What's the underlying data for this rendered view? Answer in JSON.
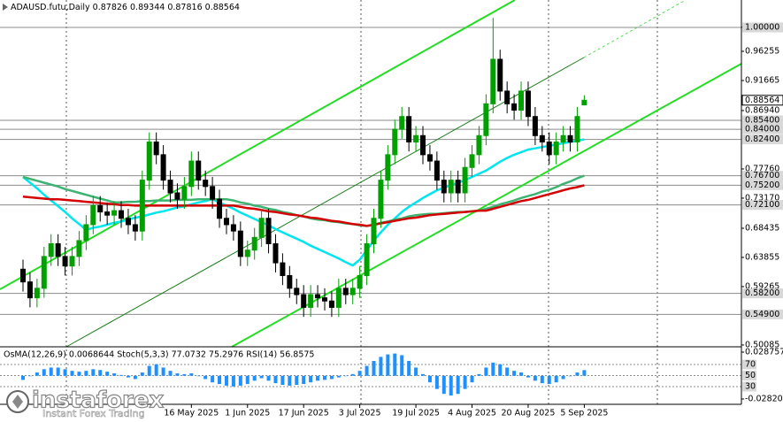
{
  "chart_data": [
    {
      "type": "candlestick",
      "title": "ADAUSD.futu,Daily",
      "categories": [
        null,
        null,
        null,
        null,
        null,
        null,
        null,
        null,
        null,
        null,
        null,
        null,
        null,
        null,
        null,
        null,
        null,
        null,
        null,
        null,
        null,
        null,
        null,
        null,
        "16 May 2025",
        null,
        null,
        null,
        null,
        null,
        null,
        null,
        "1 Jun 2025",
        null,
        null,
        null,
        null,
        null,
        null,
        null,
        "17 Jun 2025",
        null,
        null,
        null,
        null,
        null,
        null,
        null,
        "3 Jul 2025",
        null,
        null,
        null,
        null,
        null,
        null,
        null,
        "19 Jul 2025",
        null,
        null,
        null,
        null,
        null,
        null,
        null,
        "4 Aug 2025",
        null,
        null,
        null,
        null,
        null,
        null,
        null,
        "20 Aug 2025",
        null,
        null,
        null,
        null,
        null,
        null,
        null,
        "5 Sep 2025"
      ],
      "open": [
        0.62,
        0.6,
        0.575,
        0.59,
        0.64,
        0.66,
        0.64,
        0.625,
        0.64,
        0.665,
        0.69,
        0.72,
        0.71,
        0.705,
        0.712,
        0.7,
        0.69,
        0.68,
        0.76,
        0.82,
        0.8,
        0.76,
        0.74,
        0.73,
        0.75,
        0.79,
        0.76,
        0.75,
        0.73,
        0.7,
        0.69,
        0.68,
        0.64,
        0.65,
        0.67,
        0.7,
        0.66,
        0.63,
        0.61,
        0.59,
        0.58,
        0.56,
        0.58,
        0.575,
        0.57,
        0.56,
        0.59,
        0.58,
        0.59,
        0.61,
        0.66,
        0.7,
        0.76,
        0.8,
        0.84,
        0.86,
        0.82,
        0.83,
        0.8,
        0.79,
        0.76,
        0.74,
        0.76,
        0.74,
        0.78,
        0.8,
        0.83,
        0.88,
        0.95,
        0.9,
        0.88,
        0.87,
        0.9,
        0.86,
        0.83,
        0.82,
        0.8,
        0.82,
        0.83,
        0.82,
        0.87826
      ],
      "high": [
        0.635,
        0.615,
        0.605,
        0.655,
        0.675,
        0.675,
        0.655,
        0.655,
        0.68,
        0.705,
        0.735,
        0.735,
        0.725,
        0.727,
        0.727,
        0.715,
        0.705,
        0.775,
        0.835,
        0.835,
        0.815,
        0.775,
        0.755,
        0.765,
        0.805,
        0.805,
        0.775,
        0.765,
        0.745,
        0.715,
        0.705,
        0.695,
        0.665,
        0.685,
        0.715,
        0.715,
        0.675,
        0.645,
        0.625,
        0.605,
        0.595,
        0.595,
        0.595,
        0.59,
        0.585,
        0.605,
        0.605,
        0.605,
        0.625,
        0.675,
        0.715,
        0.775,
        0.815,
        0.855,
        0.875,
        0.875,
        0.845,
        0.845,
        0.815,
        0.805,
        0.775,
        0.775,
        0.775,
        0.795,
        0.815,
        0.845,
        0.895,
        1.015,
        0.965,
        0.915,
        0.895,
        0.915,
        0.915,
        0.875,
        0.845,
        0.835,
        0.835,
        0.845,
        0.845,
        0.875,
        0.89344
      ],
      "low": [
        0.585,
        0.56,
        0.56,
        0.575,
        0.625,
        0.625,
        0.61,
        0.61,
        0.625,
        0.65,
        0.675,
        0.695,
        0.69,
        0.69,
        0.685,
        0.675,
        0.665,
        0.665,
        0.745,
        0.785,
        0.745,
        0.725,
        0.715,
        0.715,
        0.735,
        0.745,
        0.735,
        0.715,
        0.685,
        0.675,
        0.665,
        0.625,
        0.625,
        0.635,
        0.655,
        0.645,
        0.615,
        0.595,
        0.575,
        0.565,
        0.545,
        0.545,
        0.56,
        0.555,
        0.545,
        0.545,
        0.565,
        0.565,
        0.575,
        0.595,
        0.645,
        0.685,
        0.745,
        0.785,
        0.825,
        0.805,
        0.805,
        0.785,
        0.775,
        0.745,
        0.725,
        0.725,
        0.725,
        0.725,
        0.765,
        0.785,
        0.815,
        0.865,
        0.885,
        0.865,
        0.855,
        0.855,
        0.845,
        0.815,
        0.805,
        0.785,
        0.785,
        0.805,
        0.805,
        0.805,
        0.87816
      ],
      "close": [
        0.6,
        0.575,
        0.59,
        0.64,
        0.66,
        0.64,
        0.625,
        0.64,
        0.665,
        0.69,
        0.72,
        0.71,
        0.705,
        0.712,
        0.7,
        0.69,
        0.68,
        0.76,
        0.82,
        0.8,
        0.76,
        0.74,
        0.73,
        0.75,
        0.79,
        0.76,
        0.75,
        0.73,
        0.7,
        0.69,
        0.68,
        0.64,
        0.65,
        0.67,
        0.7,
        0.66,
        0.63,
        0.61,
        0.59,
        0.58,
        0.56,
        0.58,
        0.575,
        0.57,
        0.56,
        0.59,
        0.58,
        0.59,
        0.61,
        0.66,
        0.7,
        0.76,
        0.8,
        0.84,
        0.86,
        0.82,
        0.83,
        0.8,
        0.79,
        0.76,
        0.74,
        0.76,
        0.74,
        0.78,
        0.8,
        0.83,
        0.88,
        0.95,
        0.9,
        0.88,
        0.87,
        0.9,
        0.86,
        0.83,
        0.82,
        0.8,
        0.82,
        0.83,
        0.82,
        0.86,
        0.88564
      ],
      "up_color": "#00a000",
      "down_color": "#000000",
      "series": [
        {
          "color": "#00e5ee",
          "values": [
            0.765,
            0.756,
            0.747,
            0.737,
            0.728,
            0.719,
            0.71,
            0.7,
            0.691,
            0.682,
            0.685,
            0.687,
            0.69,
            0.693,
            0.695,
            0.698,
            0.701,
            0.703,
            0.706,
            0.709,
            0.711,
            0.714,
            0.717,
            0.719,
            0.722,
            0.725,
            0.727,
            0.73,
            0.725,
            0.72,
            0.715,
            0.709,
            0.704,
            0.699,
            0.694,
            0.689,
            0.683,
            0.678,
            0.673,
            0.668,
            0.663,
            0.657,
            0.652,
            0.647,
            0.642,
            0.637,
            0.631,
            0.626,
            0.635,
            0.65,
            0.665,
            0.678,
            0.69,
            0.7,
            0.71,
            0.718,
            0.725,
            0.732,
            0.738,
            0.744,
            0.748,
            0.752,
            0.756,
            0.76,
            0.765,
            0.77,
            0.775,
            0.782,
            0.789,
            0.795,
            0.8,
            0.804,
            0.808,
            0.81,
            0.812,
            0.814,
            0.816,
            0.818,
            0.82,
            0.822,
            0.824
          ]
        },
        {
          "color": "#3cb371",
          "values": [
            0.765,
            0.762,
            0.759,
            0.756,
            0.753,
            0.75,
            0.746,
            0.743,
            0.74,
            0.737,
            0.734,
            0.731,
            0.728,
            0.725,
            0.725,
            0.726,
            0.726,
            0.727,
            0.727,
            0.728,
            0.728,
            0.728,
            0.729,
            0.729,
            0.729,
            0.73,
            0.73,
            0.73,
            0.73,
            0.73,
            0.728,
            0.725,
            0.723,
            0.72,
            0.718,
            0.715,
            0.713,
            0.71,
            0.708,
            0.705,
            0.703,
            0.7,
            0.698,
            0.697,
            0.695,
            0.694,
            0.692,
            0.691,
            0.689,
            0.688,
            0.69,
            0.693,
            0.695,
            0.698,
            0.7,
            0.703,
            0.705,
            0.706,
            0.707,
            0.707,
            0.708,
            0.709,
            0.71,
            0.71,
            0.711,
            0.712,
            0.715,
            0.718,
            0.722,
            0.725,
            0.728,
            0.732,
            0.735,
            0.738,
            0.742,
            0.745,
            0.749,
            0.754,
            0.758,
            0.763,
            0.767
          ]
        },
        {
          "color": "#d40000",
          "values": [
            0.734,
            0.733,
            0.732,
            0.731,
            0.73,
            0.73,
            0.729,
            0.728,
            0.727,
            0.726,
            0.725,
            0.724,
            0.723,
            0.722,
            0.721,
            0.721,
            0.72,
            0.72,
            0.72,
            0.72,
            0.72,
            0.72,
            0.72,
            0.72,
            0.72,
            0.72,
            0.72,
            0.72,
            0.72,
            0.72,
            0.72,
            0.718,
            0.716,
            0.715,
            0.713,
            0.711,
            0.71,
            0.708,
            0.706,
            0.705,
            0.703,
            0.701,
            0.7,
            0.698,
            0.696,
            0.695,
            0.693,
            0.691,
            0.69,
            0.688,
            0.69,
            0.692,
            0.694,
            0.696,
            0.698,
            0.7,
            0.701,
            0.703,
            0.705,
            0.706,
            0.707,
            0.708,
            0.709,
            0.71,
            0.711,
            0.712,
            0.712,
            0.715,
            0.718,
            0.721,
            0.724,
            0.727,
            0.729,
            0.732,
            0.735,
            0.738,
            0.741,
            0.744,
            0.747,
            0.749,
            0.752
          ]
        }
      ],
      "ylim": [
        0.498,
        1.0432
      ],
      "yticks": [
        1.00045,
        0.96255,
        0.91665,
        {
          "value": 0.8694,
          "label": "0.86940"
        },
        {
          "value": 0.7776,
          "label": "0.77760"
        },
        {
          "value": 0.7317,
          "label": "0.73170"
        },
        0.68435,
        0.63855,
        0.59265,
        0.50085
      ],
      "levels": [
        {
          "value": 1,
          "label": "1.00000"
        },
        {
          "value": 0.854,
          "label": "0.85400"
        },
        {
          "value": 0.84,
          "label": "0.84000"
        },
        {
          "value": 0.824,
          "label": "0.82400"
        },
        {
          "value": 0.767,
          "label": "0.76700"
        },
        {
          "value": 0.752,
          "label": "0.75200"
        },
        {
          "value": 0.721,
          "label": "0.72100"
        },
        {
          "value": 0.582,
          "label": "0.58200"
        },
        {
          "value": 0.549,
          "label": "0.54900"
        }
      ]
    },
    {
      "type": "bar",
      "title": "OsMA(12,26,9) 0.0068644  Stoch(5,3,3) 77.0732 75.2976  RSI(14) 56.8575",
      "color": "#1e90ff",
      "values": [
        -0.005,
        0,
        0.004,
        0.008,
        0.01,
        0.01,
        0.008,
        0.006,
        0.005,
        0.006,
        0.008,
        0.007,
        0.005,
        0.003,
        0.001,
        -0.002,
        -0.004,
        0.004,
        0.012,
        0.014,
        0.01,
        0.006,
        0.003,
        0.002,
        0.003,
        0,
        -0.004,
        -0.008,
        -0.01,
        -0.012,
        -0.013,
        -0.012,
        -0.01,
        -0.006,
        -0.003,
        -0.006,
        -0.009,
        -0.011,
        -0.012,
        -0.011,
        -0.01,
        -0.008,
        -0.006,
        -0.005,
        -0.004,
        -0.002,
        0,
        0.002,
        0.006,
        0.012,
        0.018,
        0.023,
        0.026,
        0.027,
        0.025,
        0.018,
        0.01,
        0.002,
        -0.008,
        -0.016,
        -0.022,
        -0.024,
        -0.022,
        -0.016,
        -0.008,
        0.002,
        0.01,
        0.016,
        0.014,
        0.01,
        0.006,
        0.004,
        -0.002,
        -0.006,
        -0.009,
        -0.01,
        -0.008,
        -0.004,
        0,
        0.004,
        0.0068644
      ],
      "ylim": [
        -0.028207,
        0.0287572
      ],
      "yticks": [
        0.0287572,
        -0.028207
      ],
      "y2lim": [
        7.6,
        92.4
      ],
      "y2ticks": [
        70,
        50,
        30
      ]
    }
  ],
  "watermark": {
    "brand": "instaforex",
    "tagline": "Instant Forex Trading"
  }
}
